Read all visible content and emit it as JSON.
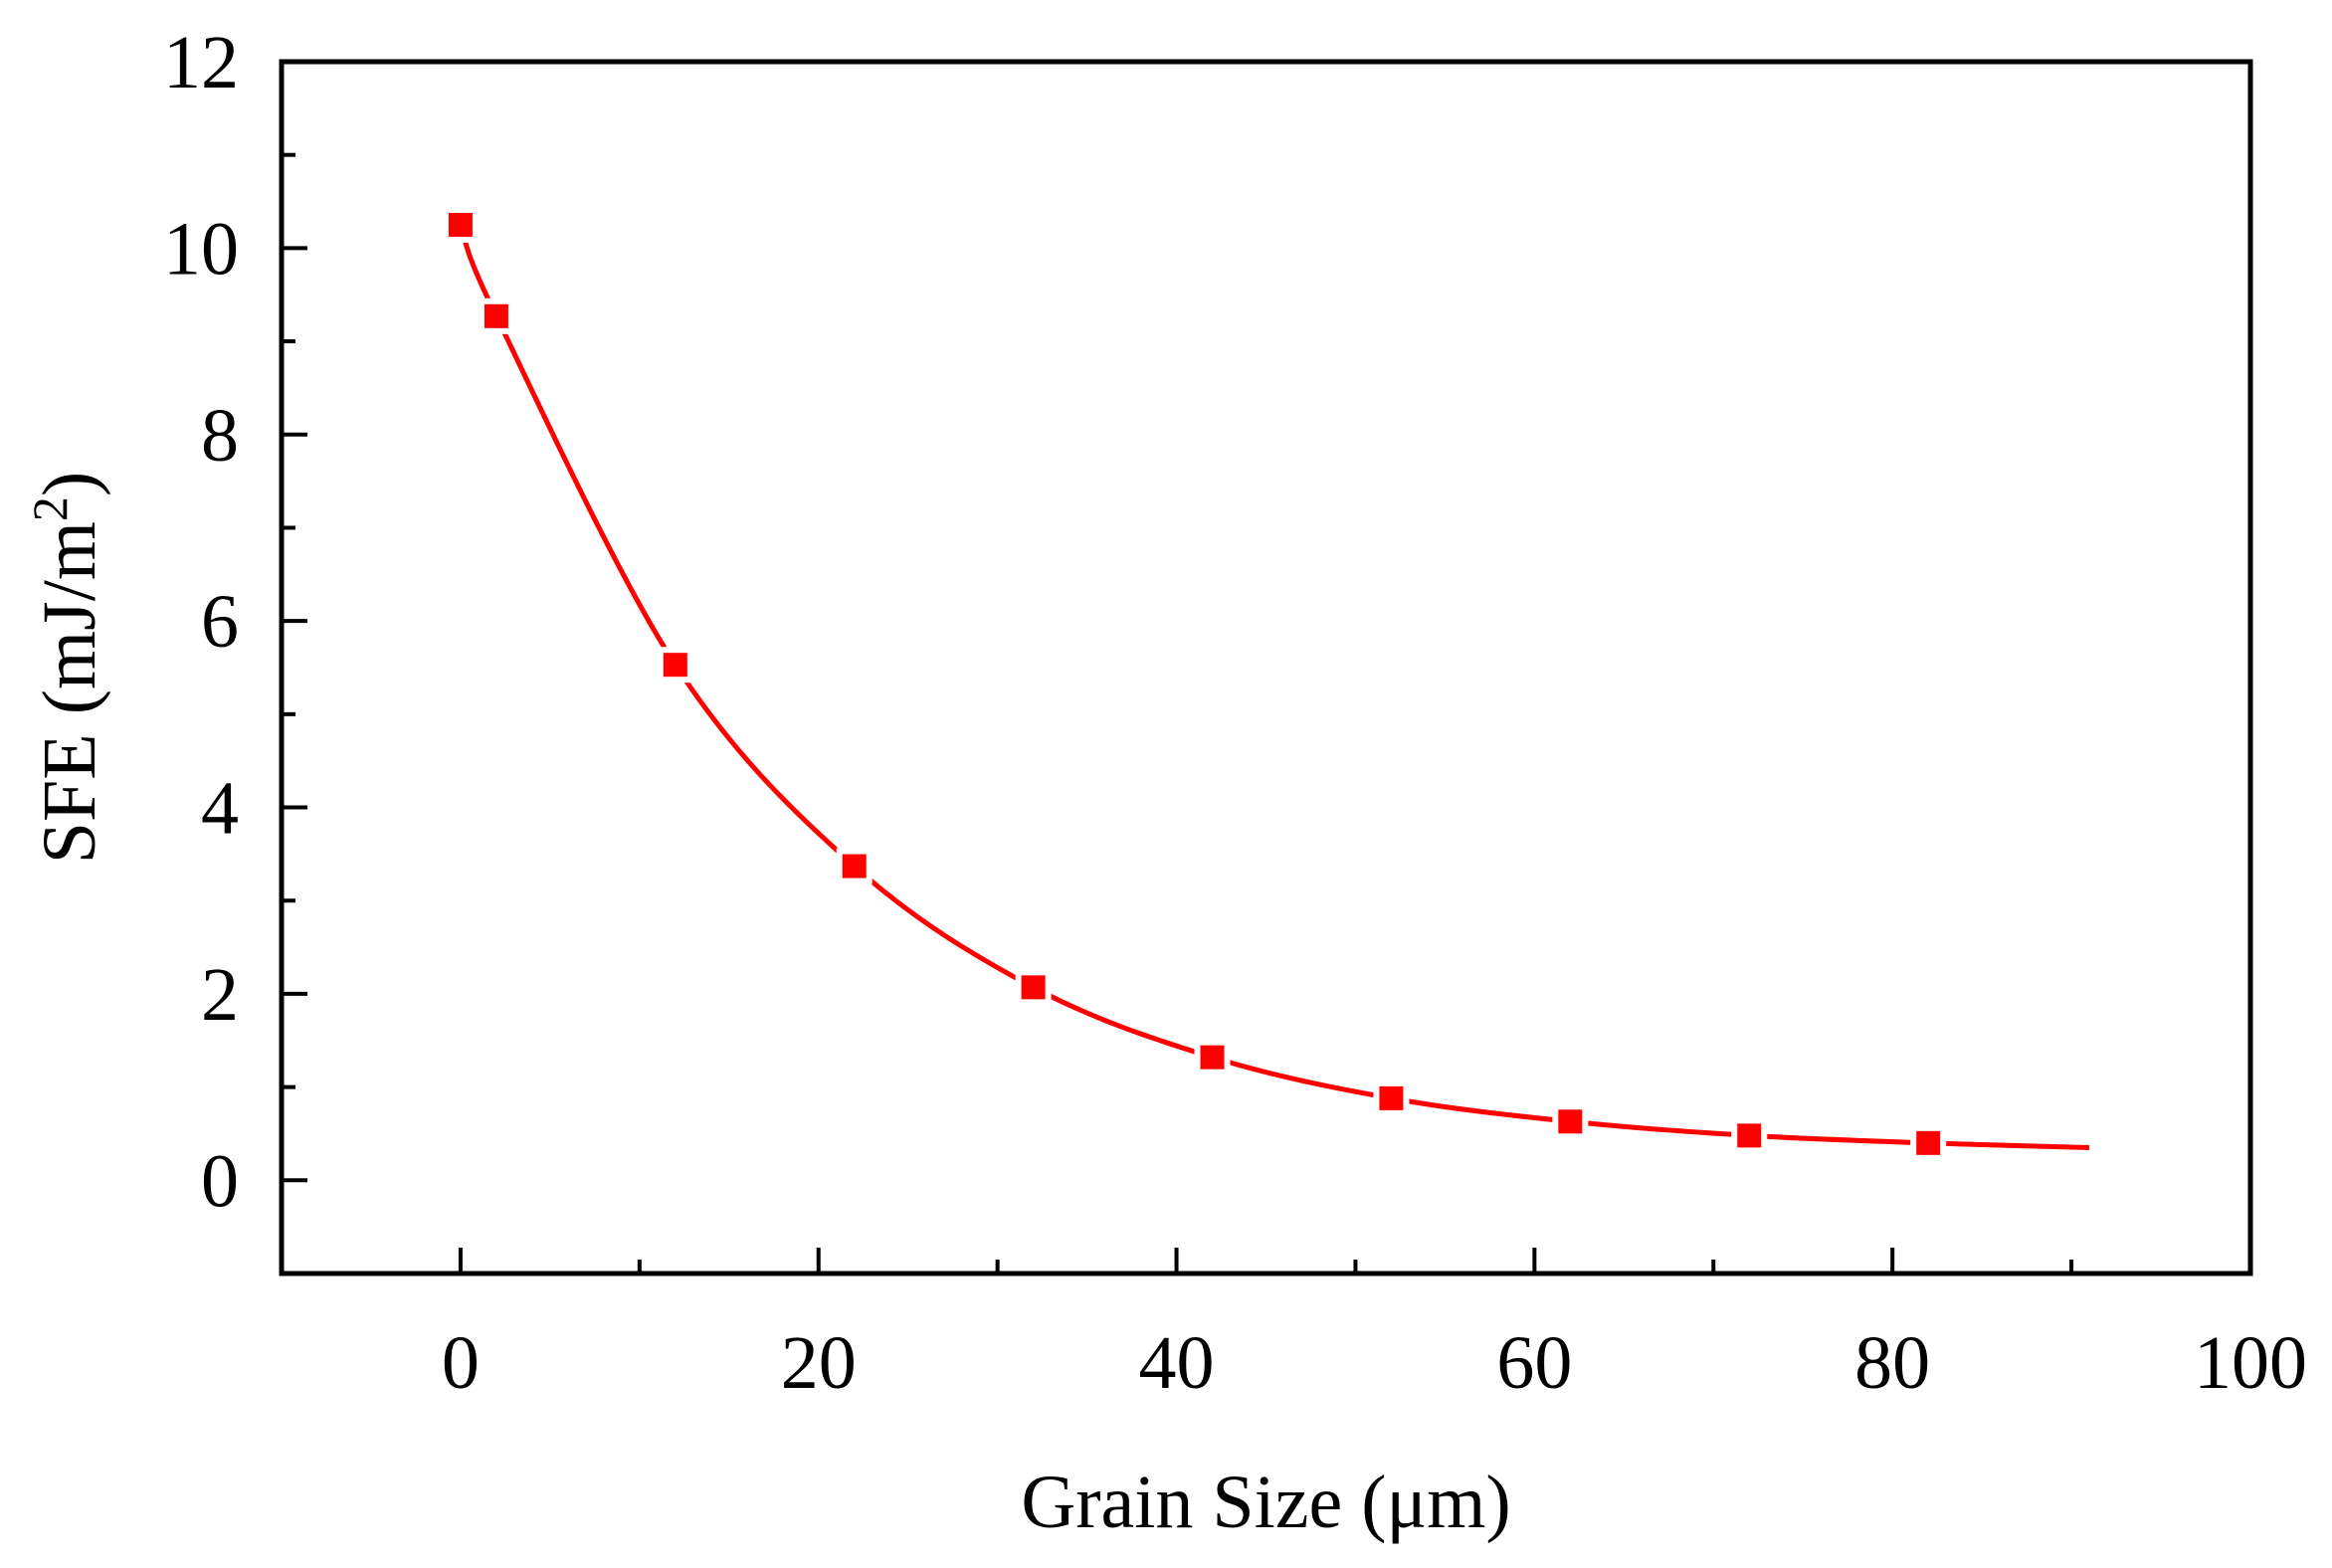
{
  "chart_data": {
    "type": "line",
    "title": "",
    "xlabel": "Grain Size (μm)",
    "ylabel_main": "SFE (mJ/m",
    "ylabel_sup": "2",
    "ylabel_close": ")",
    "xlim": [
      -10,
      100
    ],
    "ylim": [
      -1,
      12
    ],
    "x_ticks": [
      0,
      20,
      40,
      60,
      80,
      100
    ],
    "y_ticks": [
      0,
      2,
      4,
      6,
      8,
      10,
      12
    ],
    "x_minor_step": 10,
    "y_minor_step": 1,
    "grid": false,
    "series": [
      {
        "name": "SFE",
        "color": "#ff0000",
        "marker": "square",
        "points": [
          {
            "x": 0,
            "y": 10.25
          },
          {
            "x": 2,
            "y": 9.27
          },
          {
            "x": 12,
            "y": 5.53
          },
          {
            "x": 22,
            "y": 3.37
          },
          {
            "x": 32,
            "y": 2.07
          },
          {
            "x": 42,
            "y": 1.32
          },
          {
            "x": 52,
            "y": 0.88
          },
          {
            "x": 62,
            "y": 0.63
          },
          {
            "x": 72,
            "y": 0.48
          },
          {
            "x": 82,
            "y": 0.4
          }
        ],
        "fit_curve": {
          "x_start": 0,
          "x_end": 91,
          "y_end": 0.35
        }
      }
    ]
  }
}
